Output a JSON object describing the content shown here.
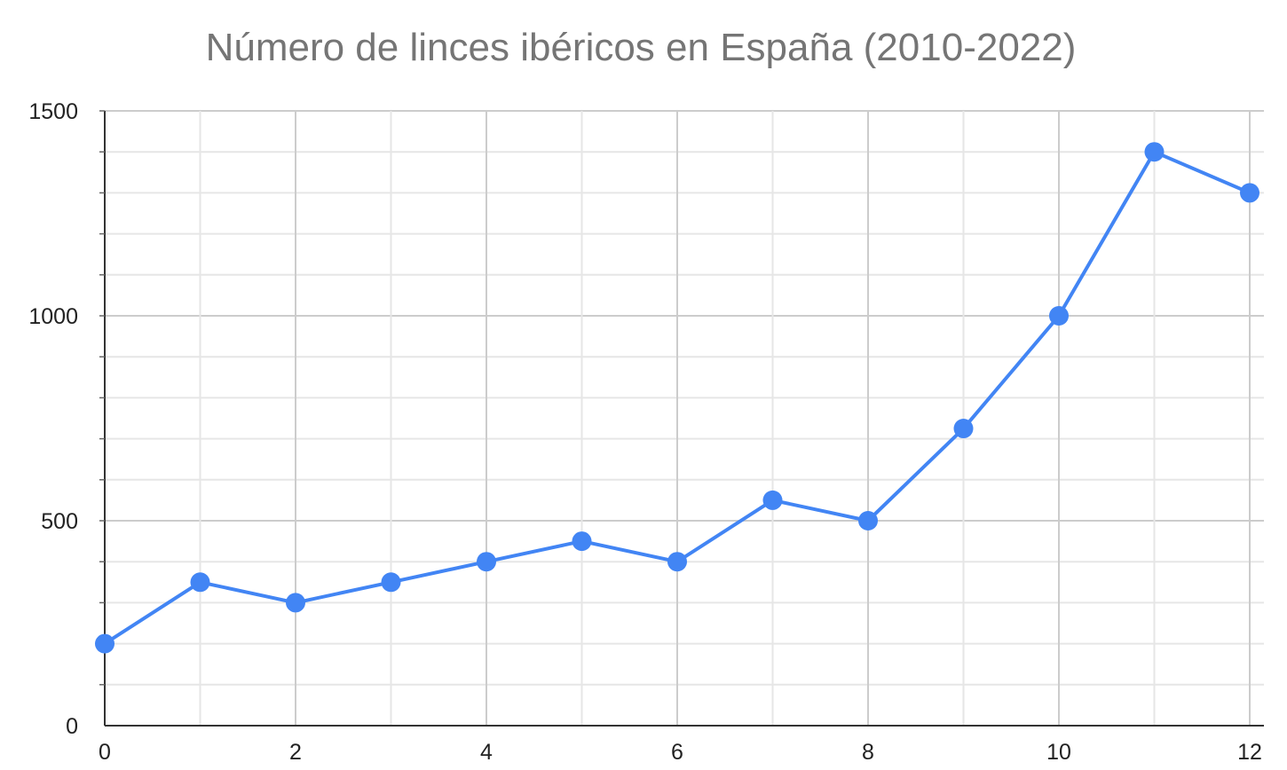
{
  "chart_data": {
    "type": "line",
    "title": "Número de linces ibéricos en España (2010-2022)",
    "xlabel": "",
    "ylabel": "",
    "x": [
      0,
      1,
      2,
      3,
      4,
      5,
      6,
      7,
      8,
      9,
      10,
      11,
      12
    ],
    "series": [
      {
        "values": [
          200,
          350,
          300,
          350,
          400,
          450,
          400,
          550,
          500,
          725,
          1000,
          1400,
          1300
        ]
      }
    ],
    "xlim": [
      0,
      12
    ],
    "ylim": [
      0,
      1500
    ],
    "x_ticks": [
      "0",
      "2",
      "4",
      "6",
      "8",
      "10",
      "12"
    ],
    "y_ticks": [
      "0",
      "500",
      "1000",
      "1500"
    ],
    "grid": true,
    "legend": "none",
    "colors": {
      "series": "#4285f4",
      "grid_major": "#cccccc",
      "grid_minor": "#e6e6e6",
      "axis": "#333333"
    }
  }
}
